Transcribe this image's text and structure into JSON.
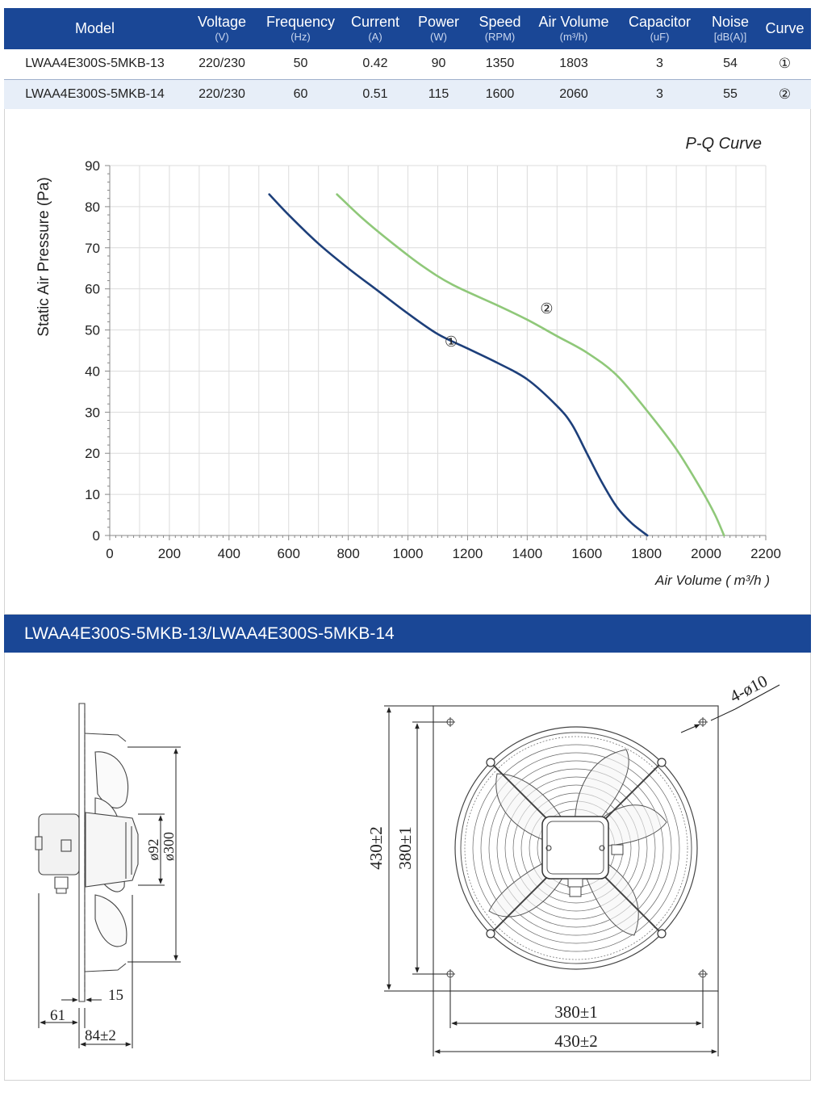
{
  "spec_table": {
    "headers": [
      {
        "label": "Model",
        "unit": ""
      },
      {
        "label": "Voltage",
        "unit": "(V)"
      },
      {
        "label": "Frequency",
        "unit": "(Hz)"
      },
      {
        "label": "Current",
        "unit": "(A)"
      },
      {
        "label": "Power",
        "unit": "(W)"
      },
      {
        "label": "Speed",
        "unit": "(RPM)"
      },
      {
        "label": "Air Volume",
        "unit": "(m³/h)"
      },
      {
        "label": "Capacitor",
        "unit": "(uF)"
      },
      {
        "label": "Noise",
        "unit": "[dB(A)]"
      },
      {
        "label": "Curve",
        "unit": ""
      }
    ],
    "rows": [
      [
        "LWAA4E300S-5MKB-13",
        "220/230",
        "50",
        "0.42",
        "90",
        "1350",
        "1803",
        "3",
        "54",
        "①"
      ],
      [
        "LWAA4E300S-5MKB-14",
        "220/230",
        "60",
        "0.51",
        "115",
        "1600",
        "2060",
        "3",
        "55",
        "②"
      ]
    ]
  },
  "chart_data": {
    "type": "line",
    "title": "P-Q Curve",
    "xlabel": "Air Volume ( m³/h )",
    "ylabel": "Static Air Pressure  (Pa)",
    "xlim": [
      0,
      2200
    ],
    "ylim": [
      0,
      90
    ],
    "x_ticks": [
      "0",
      "200",
      "400",
      "600",
      "800",
      "1000",
      "1200",
      "1400",
      "1600",
      "1800",
      "2000",
      "2200"
    ],
    "y_ticks": [
      "0",
      "10",
      "20",
      "30",
      "40",
      "50",
      "60",
      "70",
      "80",
      "90"
    ],
    "grid": true,
    "series": [
      {
        "name": "①",
        "color": "#1d3f7a",
        "label_at": [
          1145,
          46
        ],
        "points": [
          [
            535,
            83
          ],
          [
            600,
            78
          ],
          [
            700,
            71
          ],
          [
            800,
            65
          ],
          [
            900,
            59.5
          ],
          [
            1000,
            54
          ],
          [
            1100,
            49
          ],
          [
            1200,
            45.5
          ],
          [
            1300,
            42
          ],
          [
            1400,
            38
          ],
          [
            1500,
            31.5
          ],
          [
            1550,
            27
          ],
          [
            1600,
            20
          ],
          [
            1650,
            13
          ],
          [
            1700,
            7
          ],
          [
            1750,
            3
          ],
          [
            1803,
            0
          ]
        ]
      },
      {
        "name": "②",
        "color": "#8fc879",
        "label_at": [
          1465,
          54
        ],
        "points": [
          [
            762,
            83
          ],
          [
            850,
            77
          ],
          [
            950,
            71
          ],
          [
            1050,
            65.5
          ],
          [
            1150,
            61
          ],
          [
            1300,
            56
          ],
          [
            1400,
            52.5
          ],
          [
            1500,
            48.5
          ],
          [
            1600,
            44.5
          ],
          [
            1700,
            39
          ],
          [
            1800,
            30.5
          ],
          [
            1900,
            21
          ],
          [
            1985,
            11
          ],
          [
            2030,
            5
          ],
          [
            2060,
            0
          ]
        ]
      }
    ]
  },
  "section_title": "LWAA4E300S-5MKB-13/LWAA4E300S-5MKB-14",
  "drawing": {
    "dimensions": {
      "hub_diameter": "ø92",
      "blade_diameter": "ø300",
      "flange_offset": "15",
      "motor_depth": "61",
      "overall_depth": "84±2",
      "height_outer": "430±2",
      "height_holes": "380±1",
      "width_holes": "380±1",
      "width_outer": "430±2",
      "holes": "4-ø10"
    }
  }
}
